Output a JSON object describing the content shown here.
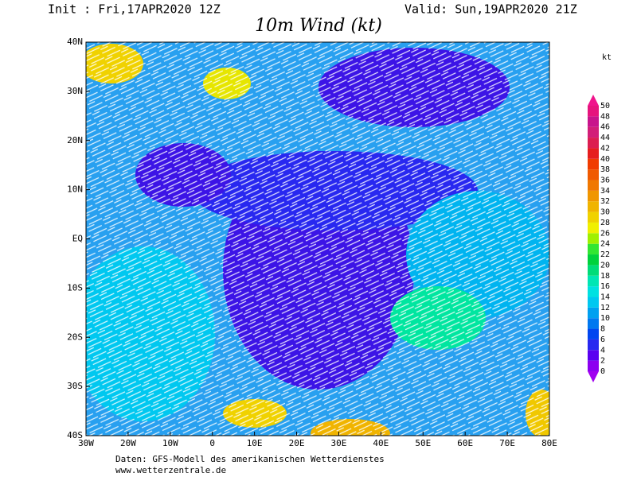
{
  "header": {
    "init": "Init : Fri,17APR2020 12Z",
    "valid": "Valid: Sun,19APR2020 21Z",
    "title": "10m Wind (kt)"
  },
  "map": {
    "x_labels": [
      "30W",
      "20W",
      "10W",
      "0",
      "10E",
      "20E",
      "30E",
      "40E",
      "50E",
      "60E",
      "70E",
      "80E"
    ],
    "y_labels": [
      "40N",
      "30N",
      "20N",
      "10N",
      "EQ",
      "10S",
      "20S",
      "30S",
      "40S"
    ]
  },
  "colorbar": {
    "unit": "kt",
    "levels": [
      0,
      2,
      4,
      6,
      8,
      10,
      12,
      14,
      16,
      18,
      20,
      22,
      24,
      26,
      28,
      30,
      32,
      34,
      36,
      38,
      40,
      42,
      44,
      46,
      48,
      50
    ],
    "colors": [
      "#8c00f0",
      "#5a00f0",
      "#2828f0",
      "#0046f0",
      "#0078f0",
      "#00a0f0",
      "#00c8f0",
      "#00e1e1",
      "#00e6b4",
      "#00dc78",
      "#00d23c",
      "#32e632",
      "#a0f000",
      "#f0f000",
      "#f0d200",
      "#f0b400",
      "#f09600",
      "#f07800",
      "#f05a00",
      "#f03c00",
      "#e61e1e",
      "#dc1e50",
      "#d21e78",
      "#c8148c",
      "#e6147d"
    ],
    "under_color": "#a000f0",
    "over_color": "#f0148c"
  },
  "footer": {
    "source": "Daten: GFS-Modell des amerikanischen Wetterdienstes",
    "site": "www.wetterzentrale.de"
  }
}
